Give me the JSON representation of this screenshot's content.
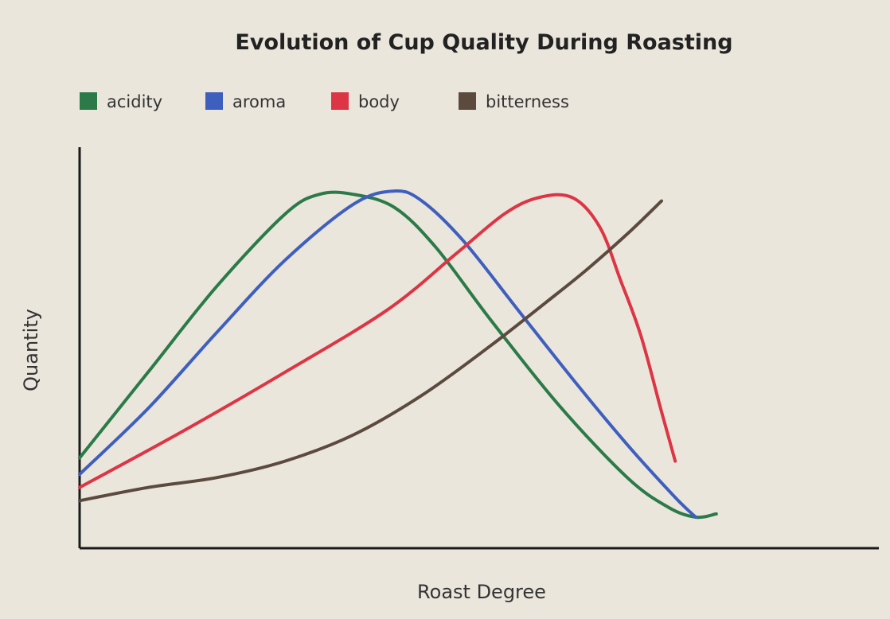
{
  "chart_data": {
    "type": "line",
    "title": "Evolution of Cup Quality During Roasting",
    "xlabel": "Roast Degree",
    "ylabel": "Quantity",
    "xlim": [
      0,
      100
    ],
    "ylim": [
      0,
      100
    ],
    "grid": false,
    "legend_position": "top-left",
    "series": [
      {
        "name": "acidity",
        "color": "#2b7a48",
        "x": [
          0,
          10,
          20,
          30,
          35,
          40,
          46,
          52,
          60,
          70,
          80,
          86,
          90,
          93
        ],
        "y": [
          18,
          44,
          70,
          92,
          98,
          98,
          94,
          82,
          60,
          34,
          12,
          3,
          0,
          1
        ]
      },
      {
        "name": "aroma",
        "color": "#3f5fbf",
        "x": [
          0,
          10,
          20,
          30,
          40,
          46,
          50,
          56,
          64,
          72,
          80,
          87,
          90
        ],
        "y": [
          13,
          33,
          56,
          78,
          95,
          99,
          96,
          84,
          63,
          42,
          22,
          6,
          0
        ]
      },
      {
        "name": "body",
        "color": "#dc3545",
        "x": [
          0,
          15,
          30,
          45,
          55,
          62,
          67,
          72,
          76,
          79,
          82,
          85,
          87
        ],
        "y": [
          9,
          26,
          44,
          63,
          80,
          92,
          97,
          97,
          88,
          72,
          55,
          32,
          17
        ]
      },
      {
        "name": "bitterness",
        "color": "#5c4a3e",
        "x": [
          0,
          10,
          20,
          30,
          40,
          50,
          60,
          68,
          74,
          80,
          85
        ],
        "y": [
          5,
          9,
          12,
          17,
          25,
          37,
          52,
          65,
          75,
          86,
          96
        ]
      }
    ]
  }
}
